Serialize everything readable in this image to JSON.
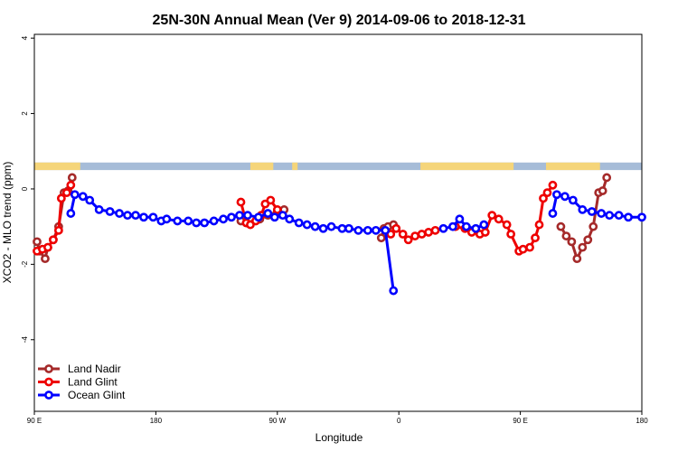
{
  "chart_data": {
    "type": "line",
    "title": "25N-30N Annual Mean (Ver 9)   2014-09-06 to 2018-12-31",
    "xlabel": "Longitude",
    "ylabel": "XCO2 - MLO trend (ppm)",
    "x_ticks": [
      {
        "value": 90,
        "label": "90 E"
      },
      {
        "value": 180,
        "label": "180"
      },
      {
        "value": 270,
        "label": "90 W"
      },
      {
        "value": 360,
        "label": "0"
      },
      {
        "value": 450,
        "label": "90 E"
      },
      {
        "value": 540,
        "label": "180"
      }
    ],
    "y_ticks": [
      {
        "value": 4,
        "label": "4"
      },
      {
        "value": 2,
        "label": "2"
      },
      {
        "value": 0,
        "label": "0"
      },
      {
        "value": -2,
        "label": "-2"
      },
      {
        "value": -4,
        "label": "-4"
      }
    ],
    "xlim": [
      90,
      540
    ],
    "ylim": [
      -5.9,
      4.1
    ],
    "grid": false,
    "legend_position": "bottom-left",
    "land_ocean_strip": {
      "y_range": [
        0.5,
        0.7
      ],
      "land_color": "#f5d57a",
      "ocean_color": "#a6bcd8",
      "land_segments": [
        [
          90,
          124
        ],
        [
          250,
          267
        ],
        [
          281,
          285
        ],
        [
          376,
          445
        ],
        [
          469,
          509
        ]
      ]
    },
    "series": [
      {
        "name": "Land Nadir",
        "color": "#a52a2a",
        "segments": [
          [
            [
              92,
              -1.4
            ],
            [
              94,
              -1.65
            ],
            [
              98,
              -1.85
            ],
            [
              100,
              -1.55
            ],
            [
              104,
              -1.35
            ],
            [
              108,
              -1.0
            ],
            [
              112,
              -0.1
            ],
            [
              115,
              -0.05
            ],
            [
              118,
              0.3
            ]
          ],
          [
            [
              243,
              -0.85
            ],
            [
              247,
              -0.9
            ],
            [
              257,
              -0.8
            ],
            [
              263,
              -0.7
            ],
            [
              270,
              -0.6
            ],
            [
              275,
              -0.55
            ]
          ],
          [
            [
              347,
              -1.3
            ],
            [
              349,
              -1.05
            ],
            [
              352,
              -1.0
            ],
            [
              356,
              -0.95
            ]
          ],
          [
            [
              480,
              -1.0
            ],
            [
              484,
              -1.25
            ],
            [
              488,
              -1.4
            ],
            [
              492,
              -1.85
            ],
            [
              496,
              -1.55
            ],
            [
              500,
              -1.35
            ],
            [
              504,
              -1.0
            ],
            [
              508,
              -0.1
            ],
            [
              511,
              -0.05
            ],
            [
              514,
              0.3
            ]
          ]
        ]
      },
      {
        "name": "Land Glint",
        "color": "#ee0000",
        "segments": [
          [
            [
              92,
              -1.65
            ],
            [
              96,
              -1.6
            ],
            [
              100,
              -1.55
            ],
            [
              104,
              -1.35
            ],
            [
              108,
              -1.1
            ],
            [
              110,
              -0.25
            ],
            [
              114,
              -0.1
            ],
            [
              117,
              0.1
            ]
          ],
          [
            [
              243,
              -0.35
            ],
            [
              247,
              -0.9
            ],
            [
              250,
              -0.95
            ],
            [
              254,
              -0.85
            ],
            [
              258,
              -0.7
            ],
            [
              261,
              -0.4
            ],
            [
              265,
              -0.3
            ],
            [
              270,
              -0.55
            ]
          ],
          [
            [
              354,
              -1.2
            ],
            [
              358,
              -1.05
            ],
            [
              363,
              -1.2
            ],
            [
              367,
              -1.35
            ],
            [
              372,
              -1.25
            ],
            [
              377,
              -1.2
            ],
            [
              382,
              -1.15
            ],
            [
              387,
              -1.1
            ]
          ],
          [
            [
              402,
              -1.0
            ],
            [
              409,
              -1.05
            ],
            [
              414,
              -1.15
            ],
            [
              420,
              -1.2
            ],
            [
              424,
              -1.15
            ],
            [
              429,
              -0.7
            ],
            [
              434,
              -0.8
            ],
            [
              440,
              -0.95
            ],
            [
              443,
              -1.2
            ],
            [
              449,
              -1.65
            ],
            [
              452,
              -1.6
            ],
            [
              457,
              -1.55
            ],
            [
              461,
              -1.3
            ],
            [
              464,
              -0.95
            ],
            [
              467,
              -0.25
            ],
            [
              470,
              -0.1
            ],
            [
              474,
              0.1
            ]
          ]
        ]
      },
      {
        "name": "Ocean Glint",
        "color": "#0000ff",
        "segments": [
          [
            [
              117,
              -0.65
            ],
            [
              120,
              -0.15
            ],
            [
              126,
              -0.2
            ],
            [
              131,
              -0.3
            ],
            [
              138,
              -0.55
            ],
            [
              146,
              -0.6
            ],
            [
              153,
              -0.65
            ],
            [
              159,
              -0.7
            ],
            [
              165,
              -0.7
            ],
            [
              171,
              -0.75
            ],
            [
              178,
              -0.75
            ],
            [
              184,
              -0.85
            ],
            [
              188,
              -0.8
            ],
            [
              196,
              -0.85
            ],
            [
              204,
              -0.85
            ],
            [
              210,
              -0.9
            ],
            [
              216,
              -0.9
            ],
            [
              223,
              -0.85
            ],
            [
              230,
              -0.8
            ],
            [
              236,
              -0.75
            ],
            [
              242,
              -0.7
            ],
            [
              248,
              -0.7
            ],
            [
              256,
              -0.75
            ],
            [
              263,
              -0.65
            ],
            [
              268,
              -0.75
            ],
            [
              274,
              -0.7
            ],
            [
              279,
              -0.8
            ],
            [
              286,
              -0.9
            ],
            [
              292,
              -0.95
            ],
            [
              298,
              -1.0
            ],
            [
              304,
              -1.05
            ],
            [
              310,
              -1.0
            ],
            [
              318,
              -1.05
            ],
            [
              323,
              -1.05
            ],
            [
              330,
              -1.1
            ],
            [
              337,
              -1.1
            ],
            [
              343,
              -1.1
            ],
            [
              350,
              -1.1
            ],
            [
              356,
              -2.7
            ]
          ],
          [
            [
              393,
              -1.05
            ],
            [
              400,
              -1.0
            ],
            [
              405,
              -0.8
            ],
            [
              410,
              -1.0
            ],
            [
              417,
              -1.05
            ],
            [
              423,
              -0.95
            ]
          ],
          [
            [
              474,
              -0.65
            ],
            [
              477,
              -0.15
            ],
            [
              483,
              -0.2
            ],
            [
              489,
              -0.3
            ],
            [
              496,
              -0.55
            ],
            [
              503,
              -0.6
            ],
            [
              510,
              -0.65
            ],
            [
              516,
              -0.7
            ],
            [
              523,
              -0.7
            ],
            [
              530,
              -0.75
            ],
            [
              540,
              -0.75
            ]
          ]
        ]
      }
    ]
  }
}
